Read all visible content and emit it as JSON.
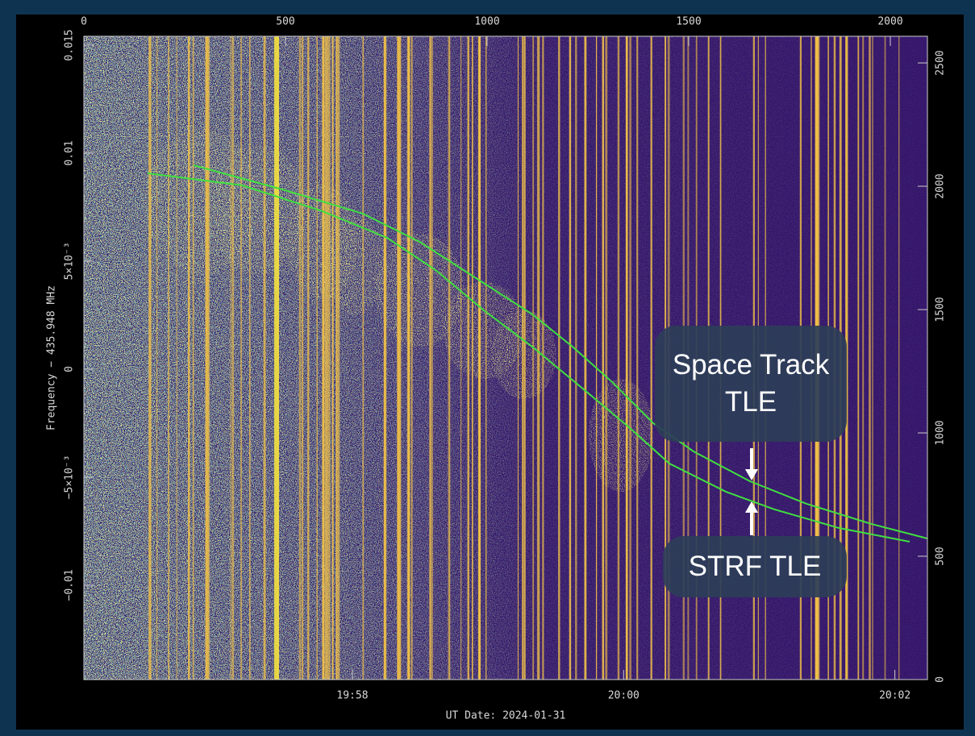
{
  "chart_data": {
    "type": "line",
    "ylabel": "Frequency − 435.948 MHz",
    "xlabel": "UT Date: 2024-01-31",
    "xlim": [
      0,
      2092
    ],
    "xticks": [
      0,
      500,
      1000,
      1500,
      2000
    ],
    "ylim": [
      -0.01437,
      0.01541
    ],
    "yticks": [
      {
        "value": 0.015,
        "label": "0.015"
      },
      {
        "value": 0.01,
        "label": "0.01"
      },
      {
        "value": 0.005,
        "label": "5×10⁻³"
      },
      0,
      {
        "value": -0.005,
        "label": "−5×10⁻³"
      },
      {
        "value": -0.01,
        "label": "−0.01"
      }
    ],
    "y2lim": [
      0,
      2608
    ],
    "y2ticks": [
      0,
      500,
      1000,
      1500,
      2000,
      2500
    ],
    "x2lim": [
      1196.02,
      1202.24
    ],
    "x2ticks": [
      {
        "value": 1198,
        "label": "19:58"
      },
      {
        "value": 1200,
        "label": "20:00"
      },
      {
        "value": 1202,
        "label": "20:02"
      }
    ],
    "series": [
      {
        "color": "#3fe03f",
        "x": [
          272,
          492,
          692,
          832,
          972,
          1112,
          1212,
          1312,
          1412,
          1512,
          1652,
          1792,
          1952,
          2092
        ],
        "values": [
          0.00944,
          0.00832,
          0.0072,
          0.0059,
          0.00422,
          0.00254,
          0.00104,
          -0.00063,
          -0.0025,
          -0.00381,
          -0.00519,
          -0.00623,
          -0.00716,
          -0.00784
        ]
      },
      {
        "color": "#3fe03f",
        "x": [
          158,
          392,
          592,
          752,
          872,
          992,
          1112,
          1232,
          1352,
          1452,
          1592,
          1712,
          1872,
          2048
        ],
        "values": [
          0.00907,
          0.00851,
          0.00731,
          0.00608,
          0.00459,
          0.00272,
          0.00104,
          -0.00082,
          -0.00269,
          -0.00437,
          -0.00567,
          -0.00649,
          -0.00735,
          -0.00799
        ]
      }
    ],
    "annotations": [
      "Space Track TLE",
      "STRF TLE"
    ]
  }
}
